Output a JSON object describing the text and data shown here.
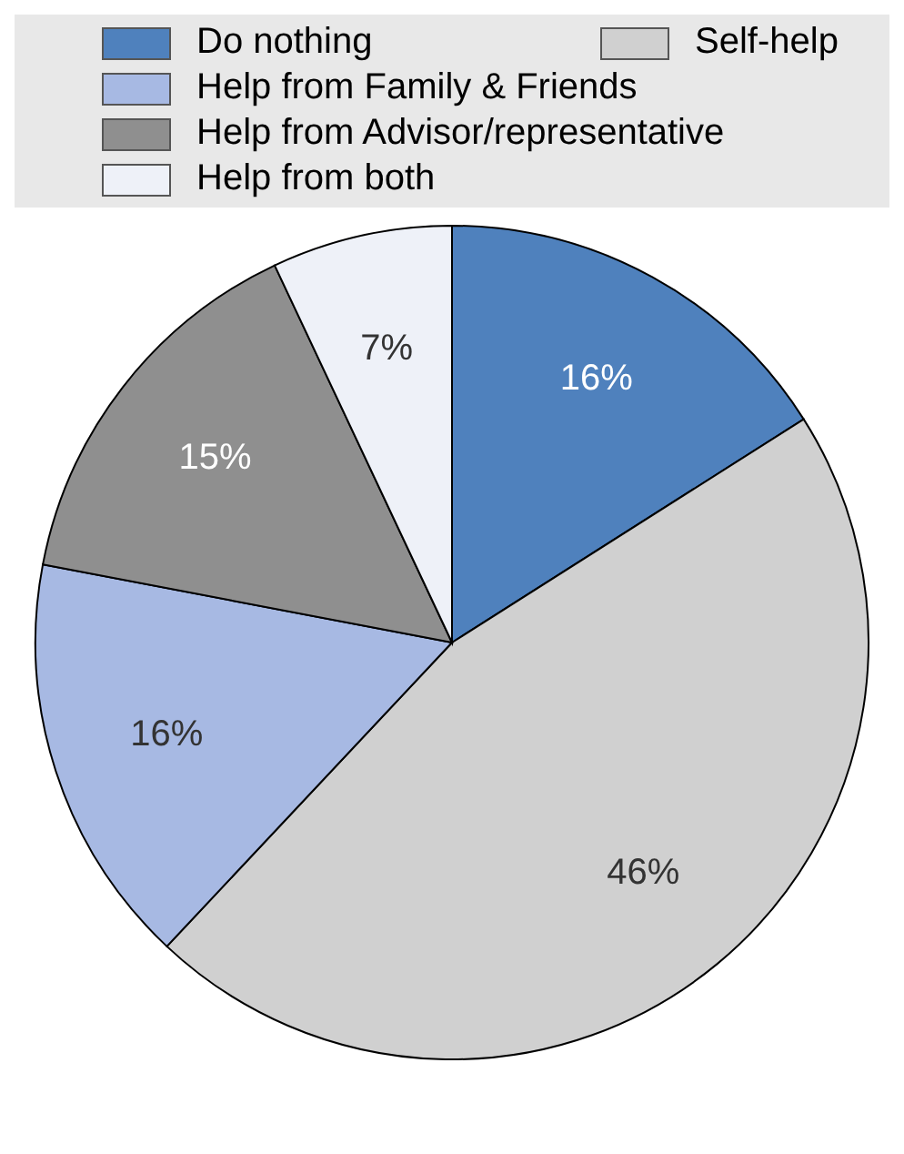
{
  "chart_data": {
    "type": "pie",
    "categories": [
      "Do nothing",
      "Self-help",
      "Help from Family & Friends",
      "Help from Advisor/representative",
      "Help from both"
    ],
    "values": [
      16,
      46,
      16,
      15,
      7
    ],
    "colors": [
      "#4f81bd",
      "#d0d0d0",
      "#a7b9e3",
      "#8f8f8f",
      "#eef1f8"
    ],
    "value_labels": [
      "16%",
      "46%",
      "16%",
      "15%",
      "7%"
    ],
    "legend": "top"
  }
}
